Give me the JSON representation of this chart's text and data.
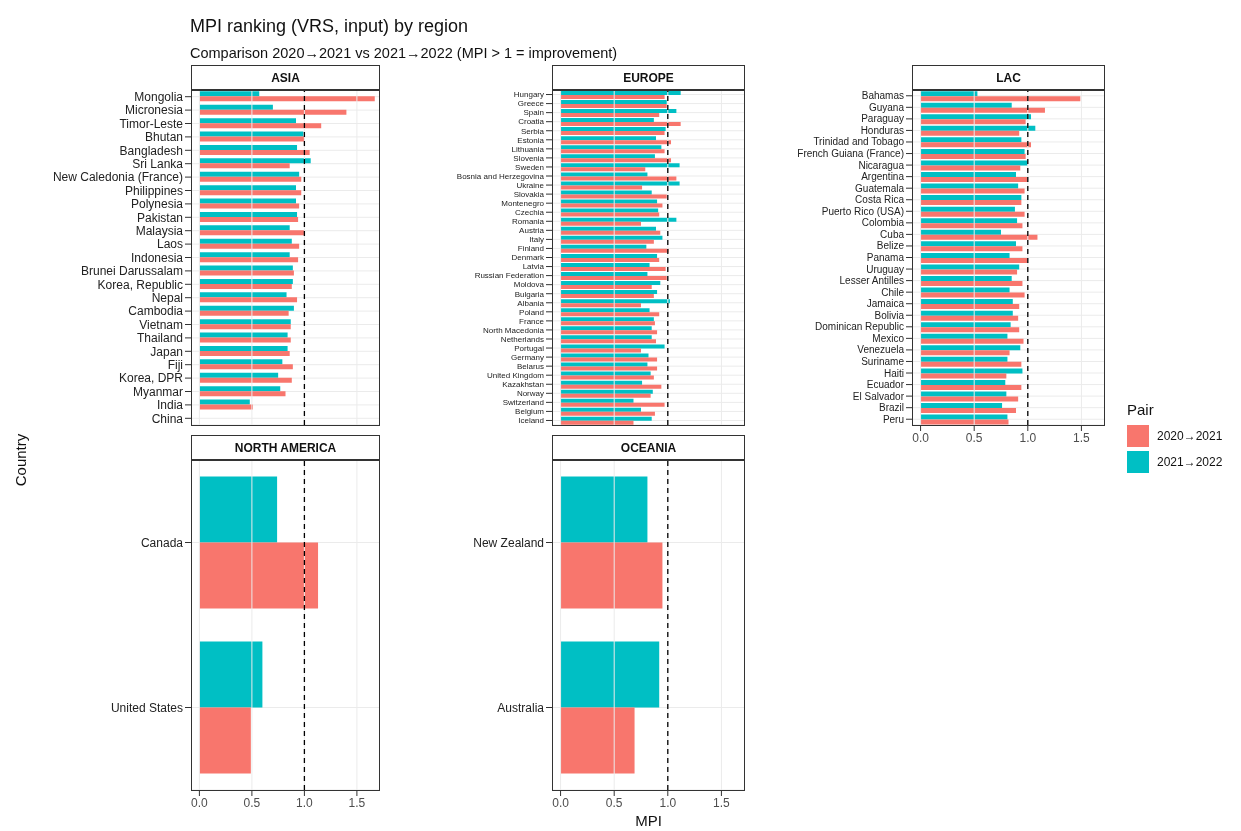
{
  "chart_data": [
    {
      "type": "other",
      "title": "MPI ranking (VRS, input) by region",
      "subtitle": "Comparison 2020→2021 vs 2021→2022 (MPI > 1 = improvement)"
    },
    {
      "type": "bar",
      "orientation": "horizontal",
      "title": "ASIA",
      "categories": [
        "Mongolia",
        "Micronesia",
        "Timor-Leste",
        "Bhutan",
        "Bangladesh",
        "Sri Lanka",
        "New Caledonia (France)",
        "Philippines",
        "Polynesia",
        "Pakistan",
        "Malaysia",
        "Laos",
        "Indonesia",
        "Brunei Darussalam",
        "Korea, Republic",
        "Nepal",
        "Cambodia",
        "Vietnam",
        "Thailand",
        "Japan",
        "Fiji",
        "Korea, DPR",
        "Myanmar",
        "India",
        "China"
      ],
      "series": [
        {
          "color": "#f8766d",
          "values": [
            1.67,
            1.4,
            1.16,
            1.0,
            1.05,
            0.86,
            0.97,
            0.97,
            0.95,
            0.94,
            1.0,
            0.95,
            0.94,
            0.9,
            0.88,
            0.93,
            0.85,
            0.87,
            0.87,
            0.86,
            0.89,
            0.88,
            0.82,
            0.51,
            null
          ]
        },
        {
          "color": "#00bfc4",
          "values": [
            0.57,
            0.7,
            0.92,
            0.99,
            0.93,
            1.06,
            0.95,
            0.92,
            0.92,
            0.93,
            0.86,
            0.88,
            0.86,
            0.89,
            0.89,
            0.83,
            0.9,
            0.87,
            0.84,
            0.84,
            0.79,
            0.75,
            0.77,
            0.48,
            null
          ]
        }
      ],
      "xlim": [
        -0.08,
        1.72
      ],
      "xticks": [
        0,
        0.5,
        1,
        1.5
      ],
      "tick_labels": "y",
      "grid": true,
      "ref_lines": [
        {
          "axis": "x",
          "value": 1,
          "color": "#000000",
          "line_style": "dashed"
        }
      ]
    },
    {
      "type": "bar",
      "orientation": "horizontal",
      "title": "EUROPE",
      "categories": [
        "Hungary",
        "Greece",
        "Spain",
        "Croatia",
        "Serbia",
        "Estonia",
        "Lithuania",
        "Slovenia",
        "Sweden",
        "Bosnia and Herzegovina",
        "Ukraine",
        "Slovakia",
        "Montenegro",
        "Czechia",
        "Romania",
        "Austria",
        "Italy",
        "Finland",
        "Denmark",
        "Latvia",
        "Russian Federation",
        "Moldova",
        "Bulgaria",
        "Albania",
        "Poland",
        "France",
        "North Macedonia",
        "Netherlands",
        "Portugal",
        "Germany",
        "Belarus",
        "United Kingdom",
        "Kazakhstan",
        "Norway",
        "Switzerland",
        "Belgium",
        "Iceland"
      ],
      "series": [
        {
          "color": "#f8766d",
          "values": [
            0.97,
            0.99,
            0.92,
            1.12,
            0.97,
            1.03,
            0.97,
            1.03,
            0.79,
            1.08,
            0.76,
            0.99,
            0.95,
            0.92,
            0.75,
            0.93,
            0.87,
            1.01,
            0.92,
            0.98,
            0.99,
            0.85,
            0.87,
            0.75,
            0.92,
            0.88,
            0.9,
            0.89,
            0.75,
            0.9,
            0.9,
            0.87,
            0.94,
            0.84,
            0.97,
            0.88,
            0.68
          ]
        },
        {
          "color": "#00bfc4",
          "values": [
            1.12,
            0.99,
            1.08,
            0.87,
            0.98,
            0.89,
            0.94,
            0.88,
            1.11,
            0.81,
            1.11,
            0.85,
            0.9,
            0.91,
            1.08,
            0.89,
            0.95,
            0.8,
            0.9,
            0.83,
            0.81,
            0.93,
            0.9,
            1.02,
            0.83,
            0.87,
            0.85,
            0.85,
            0.97,
            0.82,
            0.81,
            0.84,
            0.76,
            0.86,
            0.68,
            0.75,
            0.85
          ]
        }
      ],
      "xlim": [
        -0.08,
        1.72
      ],
      "xticks": [
        0,
        0.5,
        1,
        1.5
      ],
      "tick_labels": "y",
      "grid": true,
      "ref_lines": [
        {
          "axis": "x",
          "value": 1,
          "color": "#000000",
          "line_style": "dashed"
        }
      ]
    },
    {
      "type": "bar",
      "orientation": "horizontal",
      "title": "LAC",
      "categories": [
        "Bahamas",
        "Guyana",
        "Paraguay",
        "Honduras",
        "Trinidad and Tobago",
        "French Guiana (France)",
        "Nicaragua",
        "Argentina",
        "Guatemala",
        "Costa Rica",
        "Puerto Rico (USA)",
        "Colombia",
        "Cuba",
        "Belize",
        "Panama",
        "Uruguay",
        "Lesser Antilles",
        "Chile",
        "Jamaica",
        "Bolivia",
        "Dominican Republic",
        "Mexico",
        "Venezuela",
        "Suriname",
        "Haiti",
        "Ecuador",
        "El Salvador",
        "Brazil",
        "Peru"
      ],
      "series": [
        {
          "name": "2020→2021",
          "color": "#f8766d",
          "values": [
            1.49,
            1.16,
            0.98,
            0.92,
            1.03,
            0.98,
            0.93,
            1.0,
            0.97,
            0.94,
            0.97,
            0.95,
            1.09,
            0.95,
            1.0,
            0.9,
            0.95,
            0.97,
            0.92,
            0.91,
            0.92,
            0.96,
            0.83,
            0.94,
            0.8,
            0.94,
            0.91,
            0.89,
            0.82
          ]
        },
        {
          "name": "2021→2022",
          "color": "#00bfc4",
          "values": [
            0.53,
            0.85,
            1.03,
            1.07,
            0.94,
            0.97,
            1.0,
            0.89,
            0.91,
            0.94,
            0.88,
            0.9,
            0.75,
            0.89,
            0.83,
            0.92,
            0.85,
            0.83,
            0.86,
            0.86,
            0.84,
            0.81,
            0.93,
            0.81,
            0.95,
            0.79,
            0.8,
            0.76,
            0.81
          ]
        }
      ],
      "xlim": [
        -0.08,
        1.72
      ],
      "xticks": [
        {
          "value": 0,
          "label": "0.0"
        },
        0.5,
        {
          "value": 1,
          "label": "1.0"
        },
        {
          "value": 1.5,
          "label": "1.5"
        }
      ],
      "grid": true,
      "legend": "right",
      "legend_title": "Pair",
      "ref_lines": [
        {
          "axis": "x",
          "value": 1,
          "color": "#000000",
          "line_style": "dashed"
        }
      ]
    },
    {
      "type": "bar",
      "orientation": "horizontal",
      "title": "NORTH AMERICA",
      "ylabel": "Country",
      "categories": [
        "Canada",
        "United States"
      ],
      "series": [
        {
          "color": "#f8766d",
          "values": [
            1.13,
            0.49
          ]
        },
        {
          "color": "#00bfc4",
          "values": [
            0.74,
            0.6
          ]
        }
      ],
      "xlim": [
        -0.08,
        1.72
      ],
      "xticks": [
        {
          "value": 0,
          "label": "0.0"
        },
        0.5,
        {
          "value": 1,
          "label": "1.0"
        },
        {
          "value": 1.5,
          "label": "1.5"
        }
      ],
      "grid": true,
      "ref_lines": [
        {
          "axis": "x",
          "value": 1,
          "color": "#000000",
          "line_style": "dashed"
        }
      ]
    },
    {
      "type": "bar",
      "orientation": "horizontal",
      "title": "OCEANIA",
      "xlabel": "MPI",
      "categories": [
        "New Zealand",
        "Australia"
      ],
      "series": [
        {
          "color": "#f8766d",
          "values": [
            0.95,
            0.69
          ]
        },
        {
          "color": "#00bfc4",
          "values": [
            0.81,
            0.92
          ]
        }
      ],
      "xlim": [
        -0.08,
        1.72
      ],
      "xticks": [
        {
          "value": 0,
          "label": "0.0"
        },
        0.5,
        {
          "value": 1,
          "label": "1.0"
        },
        {
          "value": 1.5,
          "label": "1.5"
        }
      ],
      "grid": true,
      "ref_lines": [
        {
          "axis": "x",
          "value": 1,
          "color": "#000000",
          "line_style": "dashed"
        }
      ]
    }
  ]
}
